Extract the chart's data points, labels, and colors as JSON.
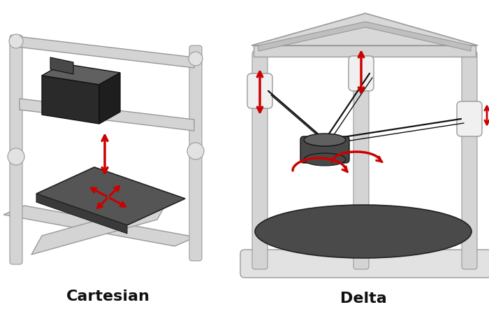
{
  "title_left": "Cartesian",
  "title_right": "Delta",
  "background_color": "#ffffff",
  "title_fontsize": 16,
  "title_fontweight": "bold",
  "fig_width": 7.0,
  "fig_height": 4.49,
  "dpi": 100,
  "frame_color": "#d4d4d4",
  "frame_dark": "#999999",
  "frame_light": "#e8e8e8",
  "rod_color": "#d0d0d0",
  "rod_edge": "#888888",
  "dark_color": "#2a2a2a",
  "dark2_color": "#484848",
  "dark3_color": "#606060",
  "arrow_color": "#cc0000",
  "bed_color": "#505050",
  "hotend_color": "#3a3a3a",
  "clamp_color": "#e2e2e2",
  "clamp_edge": "#999999",
  "clamp_light": "#f0f0f0",
  "base_color": "#e0e0e0",
  "rail_color": "#cccccc",
  "rail_edge": "#888888"
}
